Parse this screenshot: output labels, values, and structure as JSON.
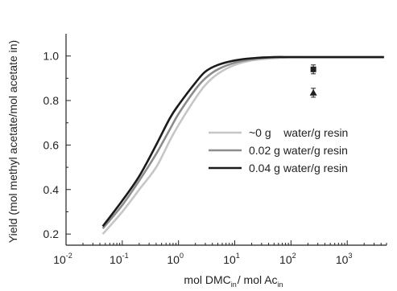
{
  "chart_data": {
    "type": "line",
    "title": "",
    "xlabel_main_1": "mol DMC",
    "xlabel_sub_1": "in",
    "xlabel_main_2": "/ mol Ac",
    "xlabel_sub_2": "in",
    "ylabel": "Yield (mol methyl acetate/mol acetate in)",
    "xscale": "log",
    "xlim": [
      0.01,
      5000
    ],
    "ylim": [
      0.15,
      1.1
    ],
    "x_ticks": [
      {
        "value": 0.01,
        "base": "10",
        "exp": "-2"
      },
      {
        "value": 0.1,
        "base": "10",
        "exp": "-1"
      },
      {
        "value": 1,
        "base": "10",
        "exp": "0"
      },
      {
        "value": 10,
        "base": "10",
        "exp": "1"
      },
      {
        "value": 100,
        "base": "10",
        "exp": "2"
      },
      {
        "value": 1000,
        "base": "10",
        "exp": "3"
      }
    ],
    "y_ticks": [
      {
        "value": 0.2,
        "label": "0.2"
      },
      {
        "value": 0.4,
        "label": "0.4"
      },
      {
        "value": 0.6,
        "label": "0.6"
      },
      {
        "value": 0.8,
        "label": "0.8"
      },
      {
        "value": 1.0,
        "label": "1.0"
      }
    ],
    "grid": false,
    "legend_position": "right-middle",
    "series": [
      {
        "name": "~0 g    water/g resin",
        "color": "#c6c6c6",
        "x": [
          0.045,
          0.1,
          0.2,
          0.4,
          0.7,
          1,
          2,
          3,
          5,
          10,
          20,
          50,
          100,
          200,
          500,
          1000,
          4500
        ],
        "y": [
          0.2,
          0.3,
          0.4,
          0.5,
          0.62,
          0.69,
          0.81,
          0.87,
          0.92,
          0.96,
          0.98,
          0.99,
          0.995,
          0.995,
          0.995,
          0.995,
          0.995
        ]
      },
      {
        "name": "0.02 g water/g resin",
        "color": "#8c8c8c",
        "x": [
          0.045,
          0.1,
          0.2,
          0.4,
          0.7,
          1,
          2,
          3,
          5,
          10,
          20,
          50,
          100,
          200,
          500,
          1000,
          4500
        ],
        "y": [
          0.225,
          0.33,
          0.44,
          0.56,
          0.67,
          0.74,
          0.85,
          0.9,
          0.94,
          0.97,
          0.985,
          0.995,
          0.995,
          0.995,
          0.995,
          0.995,
          0.995
        ]
      },
      {
        "name": "0.04 g water/g resin",
        "color": "#1a1a1a",
        "x": [
          0.045,
          0.1,
          0.2,
          0.4,
          0.7,
          1,
          2,
          3,
          5,
          10,
          20,
          50,
          100,
          200,
          500,
          1000,
          4500
        ],
        "y": [
          0.235,
          0.35,
          0.46,
          0.6,
          0.72,
          0.78,
          0.88,
          0.93,
          0.96,
          0.98,
          0.99,
          0.995,
          0.995,
          0.995,
          0.995,
          0.995,
          0.995
        ]
      }
    ],
    "markers": [
      {
        "x": 250,
        "y": 0.94,
        "shape": "square",
        "err": 0.02
      },
      {
        "x": 250,
        "y": 0.835,
        "shape": "triangle",
        "err": 0.02
      }
    ]
  }
}
